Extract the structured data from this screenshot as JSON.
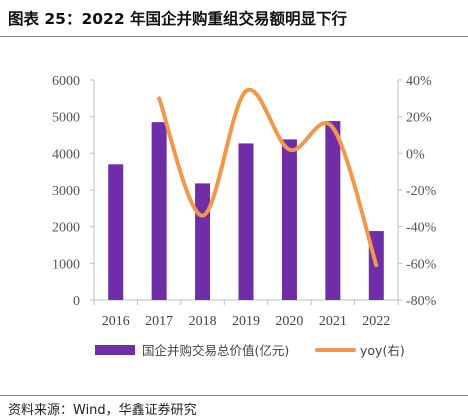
{
  "header": {
    "title": "图表 25：2022 年国企并购重组交易额明显下行"
  },
  "footer": {
    "source": "资料来源：Wind，华鑫证券研究"
  },
  "colors": {
    "bar": "#6f2da8",
    "line": "#f2984a",
    "axis": "#bfbfbf",
    "text": "#555555"
  },
  "chart_data": {
    "type": "bar",
    "categories": [
      "2016",
      "2017",
      "2018",
      "2019",
      "2020",
      "2021",
      "2022"
    ],
    "series": [
      {
        "name": "国企并购交易总价值(亿元)",
        "type": "bar",
        "axis": "left",
        "values": [
          3700,
          4850,
          3180,
          4270,
          4380,
          4880,
          1880
        ]
      },
      {
        "name": "yoy(右)",
        "type": "line",
        "axis": "right",
        "smooth": true,
        "values": [
          null,
          30,
          -34,
          34,
          2,
          14,
          -61
        ]
      }
    ],
    "y_left": {
      "min": 0,
      "max": 6000,
      "ticks": [
        0,
        1000,
        2000,
        3000,
        4000,
        5000,
        6000
      ],
      "tick_labels": [
        "0",
        "1000",
        "2000",
        "3000",
        "4000",
        "5000",
        "6000"
      ]
    },
    "y_right": {
      "min": -80,
      "max": 40,
      "ticks": [
        -80,
        -60,
        -40,
        -20,
        0,
        20,
        40
      ],
      "tick_labels": [
        "-80%",
        "-60%",
        "-40%",
        "-20%",
        "0%",
        "20%",
        "40%"
      ]
    },
    "grid": false,
    "legend_position": "bottom",
    "xlabel": "",
    "ylabel": ""
  }
}
